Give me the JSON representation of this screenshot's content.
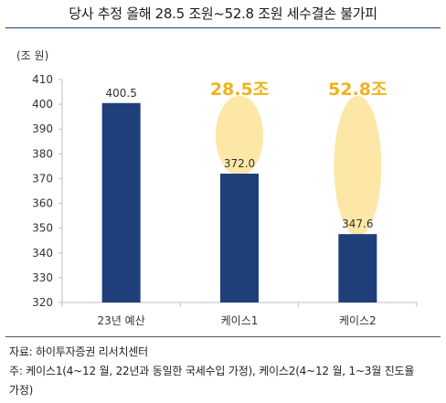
{
  "title": "당사 추정 올해 28.5 조원~52.8 조원 세수결손 불가피",
  "unit_label": "(조 원)",
  "source": "자료: 하이투자증권 리서치센터",
  "note_line1": "주: 케이스1(4~12 월, 22년과 동일한 국세수입 가정), 케이스2(4~12 월, 1~3월 진도율",
  "note_line2": "가정)",
  "colors": {
    "bar": "#1f3f7a",
    "highlight": "#fde7a6",
    "highlight_text": "#f0b31c",
    "grid": "#d9d9d9"
  },
  "chart_data": {
    "type": "bar",
    "categories": [
      "23년 예산",
      "케이스1",
      "케이스2"
    ],
    "values": [
      400.5,
      372.0,
      347.6
    ],
    "value_labels": [
      "400.5",
      "372.0",
      "347.6"
    ],
    "ylim": [
      320,
      410
    ],
    "yticks": [
      320,
      330,
      340,
      350,
      360,
      370,
      380,
      390,
      400,
      410
    ],
    "grid": false,
    "annotations": [
      {
        "category": "케이스1",
        "text": "28.5조",
        "from": 400.5,
        "to": 372.0
      },
      {
        "category": "케이스2",
        "text": "52.8조",
        "from": 400.5,
        "to": 347.6
      }
    ]
  }
}
